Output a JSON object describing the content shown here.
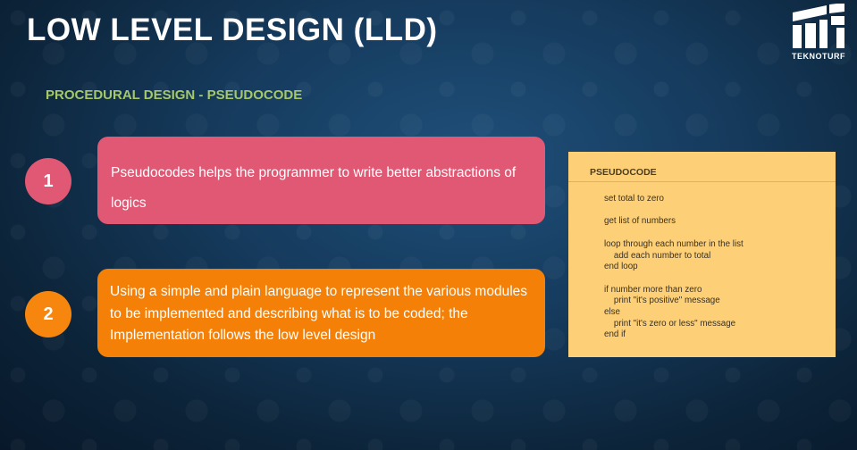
{
  "slide": {
    "title": "LOW LEVEL DESIGN (LLD)",
    "subtitle": "PROCEDURAL DESIGN - PSEUDOCODE"
  },
  "brand": {
    "logo_text": "TEKNOTURF"
  },
  "points": [
    {
      "number": "1",
      "text": "Pseudocodes helps the programmer to write better abstractions of logics",
      "color": "#e05873"
    },
    {
      "number": "2",
      "text": "Using a simple and plain language to represent the various modules to be implemented and describing what is to be coded; the Implementation follows the low level design",
      "color": "#f48007"
    }
  ],
  "pseudocode": {
    "heading": "PSEUDOCODE",
    "code": "set total to zero\n\nget list of numbers\n\nloop through each number in the list\n    add each number to total\nend loop\n\nif number more than zero\n    print \"it's positive\" message\nelse\n    print \"it's zero or less\" message\nend if"
  }
}
